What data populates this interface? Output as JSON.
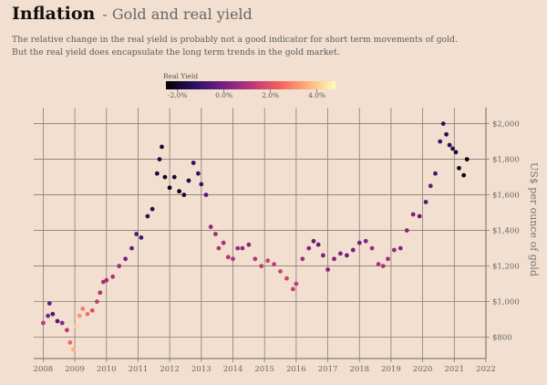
{
  "header": {
    "title": "Inflation",
    "title_suffix": "- Gold and real yield",
    "subtitle_lines": [
      "The relative change in the real yield is probably not a good indicator for short term movements of gold.",
      "But the real yield does encapsulate the long term trends in the gold market."
    ]
  },
  "chart_data": {
    "type": "scatter",
    "title": "Inflation - Gold and real yield",
    "xlabel": "",
    "ylabel": "US$ per ounce of gold",
    "xlim": [
      2007.7,
      2022.0
    ],
    "ylim": [
      680,
      2090
    ],
    "x_ticks": [
      "2008",
      "2009",
      "2010",
      "2011",
      "2012",
      "2013",
      "2014",
      "2015",
      "2016",
      "2017",
      "2018",
      "2019",
      "2020",
      "2021",
      "2022"
    ],
    "y_ticks": [
      "$800",
      "$1,000",
      "$1,200",
      "$1,400",
      "$1,600",
      "$1,800",
      "$2,000"
    ],
    "y_tick_values": [
      800,
      1000,
      1200,
      1400,
      1600,
      1800,
      2000
    ],
    "grid": true,
    "colorbar": {
      "title": "Real Yield",
      "labels": [
        "-2.0%",
        "0.0%",
        "2.0%",
        "4.0%"
      ],
      "label_values": [
        -2,
        0,
        2,
        4
      ],
      "range": [
        -2.5,
        4.8
      ],
      "colormap": [
        "#000004",
        "#2c115f",
        "#721f81",
        "#b73779",
        "#f1605d",
        "#feaf78",
        "#fcfdbf"
      ]
    },
    "series": [
      {
        "x": [
          2008.0,
          2008.15,
          2008.2,
          2008.3,
          2008.45,
          2008.6,
          2008.75,
          2008.85,
          2008.95,
          2009.05,
          2009.15,
          2009.25,
          2009.4,
          2009.55,
          2009.7,
          2009.8,
          2009.9,
          2010.0,
          2010.2,
          2010.4,
          2010.6,
          2010.8,
          2010.95,
          2011.1,
          2011.3,
          2011.45,
          2011.6,
          2011.68,
          2011.75,
          2011.85,
          2012.0,
          2012.15,
          2012.3,
          2012.45,
          2012.6,
          2012.75,
          2012.9,
          2013.0,
          2013.15,
          2013.3,
          2013.45,
          2013.55,
          2013.7,
          2013.85,
          2014.0,
          2014.15,
          2014.3,
          2014.5,
          2014.7,
          2014.9,
          2015.1,
          2015.3,
          2015.5,
          2015.7,
          2015.9,
          2016.0,
          2016.2,
          2016.4,
          2016.55,
          2016.7,
          2016.85,
          2017.0,
          2017.2,
          2017.4,
          2017.6,
          2017.8,
          2018.0,
          2018.2,
          2018.4,
          2018.6,
          2018.75,
          2018.9,
          2019.1,
          2019.3,
          2019.5,
          2019.7,
          2019.9,
          2020.1,
          2020.25,
          2020.4,
          2020.55,
          2020.65,
          2020.75,
          2020.85,
          2020.95,
          2021.05,
          2021.15,
          2021.3,
          2021.4
        ],
        "y": [
          880,
          920,
          990,
          930,
          890,
          880,
          840,
          770,
          730,
          860,
          920,
          960,
          930,
          950,
          1000,
          1050,
          1110,
          1120,
          1140,
          1200,
          1240,
          1300,
          1380,
          1360,
          1480,
          1520,
          1720,
          1800,
          1870,
          1700,
          1640,
          1700,
          1620,
          1600,
          1680,
          1780,
          1720,
          1660,
          1600,
          1420,
          1380,
          1300,
          1330,
          1250,
          1240,
          1300,
          1300,
          1320,
          1240,
          1200,
          1230,
          1210,
          1170,
          1130,
          1070,
          1100,
          1240,
          1300,
          1340,
          1320,
          1260,
          1180,
          1240,
          1270,
          1260,
          1290,
          1330,
          1340,
          1300,
          1210,
          1200,
          1240,
          1290,
          1300,
          1400,
          1490,
          1480,
          1560,
          1650,
          1720,
          1900,
          2000,
          1940,
          1880,
          1860,
          1840,
          1750,
          1710,
          1800
        ],
        "real_yield": [
          1.2,
          0.2,
          -0.3,
          -0.8,
          -0.6,
          0.4,
          1.2,
          2.5,
          3.6,
          4.2,
          3.2,
          2.8,
          2.6,
          1.9,
          1.3,
          1.0,
          0.8,
          0.8,
          1.0,
          0.6,
          0.1,
          -0.3,
          -0.6,
          -0.9,
          -1.3,
          -1.5,
          -1.7,
          -1.6,
          -1.8,
          -2.0,
          -2.2,
          -1.8,
          -2.2,
          -1.9,
          -1.6,
          -1.3,
          -1.2,
          -1.0,
          -0.5,
          0.5,
          0.7,
          1.0,
          0.8,
          1.1,
          1.0,
          0.6,
          0.4,
          0.4,
          1.2,
          1.3,
          1.5,
          1.3,
          1.5,
          1.6,
          1.5,
          1.3,
          0.8,
          0.2,
          -0.3,
          -0.3,
          0.0,
          0.3,
          0.2,
          0.1,
          -0.2,
          0.0,
          0.0,
          0.2,
          0.6,
          0.9,
          0.9,
          0.8,
          0.5,
          0.2,
          0.3,
          0.0,
          -0.2,
          -0.5,
          -0.3,
          -0.8,
          -1.0,
          -1.3,
          -1.4,
          -1.4,
          -1.5,
          -1.7,
          -2.0,
          -2.2,
          -2.3
        ]
      }
    ]
  }
}
